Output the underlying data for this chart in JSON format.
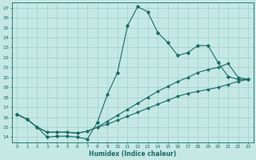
{
  "xlabel": "Humidex (Indice chaleur)",
  "background_color": "#c5e8e5",
  "grid_color": "#9fcfcc",
  "line_color": "#1a6b65",
  "xlim": [
    -0.5,
    23.5
  ],
  "ylim": [
    13.5,
    27.5
  ],
  "xticks": [
    0,
    1,
    2,
    3,
    4,
    5,
    6,
    7,
    8,
    9,
    10,
    11,
    12,
    13,
    14,
    15,
    16,
    17,
    18,
    19,
    20,
    21,
    22,
    23
  ],
  "yticks": [
    14,
    15,
    16,
    17,
    18,
    19,
    20,
    21,
    22,
    23,
    24,
    25,
    26,
    27
  ],
  "line1_x": [
    0,
    1,
    2,
    3,
    4,
    5,
    6,
    7,
    8,
    9,
    10,
    11,
    12,
    13,
    14,
    15,
    16,
    17,
    18,
    19,
    20,
    21,
    22,
    23
  ],
  "line1_y": [
    16.3,
    15.8,
    15.0,
    14.0,
    14.1,
    14.1,
    14.0,
    13.8,
    15.5,
    18.3,
    20.5,
    25.2,
    27.1,
    26.6,
    24.5,
    23.5,
    22.2,
    22.5,
    23.2,
    23.2,
    21.5,
    20.1,
    19.8,
    19.8
  ],
  "line2_x": [
    0,
    1,
    2,
    3,
    4,
    5,
    6,
    7,
    8,
    9,
    10,
    11,
    12,
    13,
    14,
    15,
    16,
    17,
    18,
    19,
    20,
    21,
    22,
    23
  ],
  "line2_y": [
    16.3,
    15.8,
    15.0,
    14.5,
    14.5,
    14.5,
    14.4,
    14.6,
    15.0,
    15.6,
    16.2,
    16.8,
    17.4,
    18.0,
    18.6,
    19.1,
    19.6,
    20.0,
    20.5,
    20.8,
    21.0,
    21.4,
    20.0,
    19.8
  ],
  "line3_x": [
    0,
    1,
    2,
    3,
    4,
    5,
    6,
    7,
    8,
    9,
    10,
    11,
    12,
    13,
    14,
    15,
    16,
    17,
    18,
    19,
    20,
    21,
    22,
    23
  ],
  "line3_y": [
    16.3,
    15.8,
    15.0,
    14.5,
    14.5,
    14.5,
    14.4,
    14.6,
    15.0,
    15.3,
    15.7,
    16.1,
    16.5,
    16.9,
    17.3,
    17.7,
    18.1,
    18.4,
    18.6,
    18.8,
    19.0,
    19.3,
    19.6,
    19.8
  ]
}
